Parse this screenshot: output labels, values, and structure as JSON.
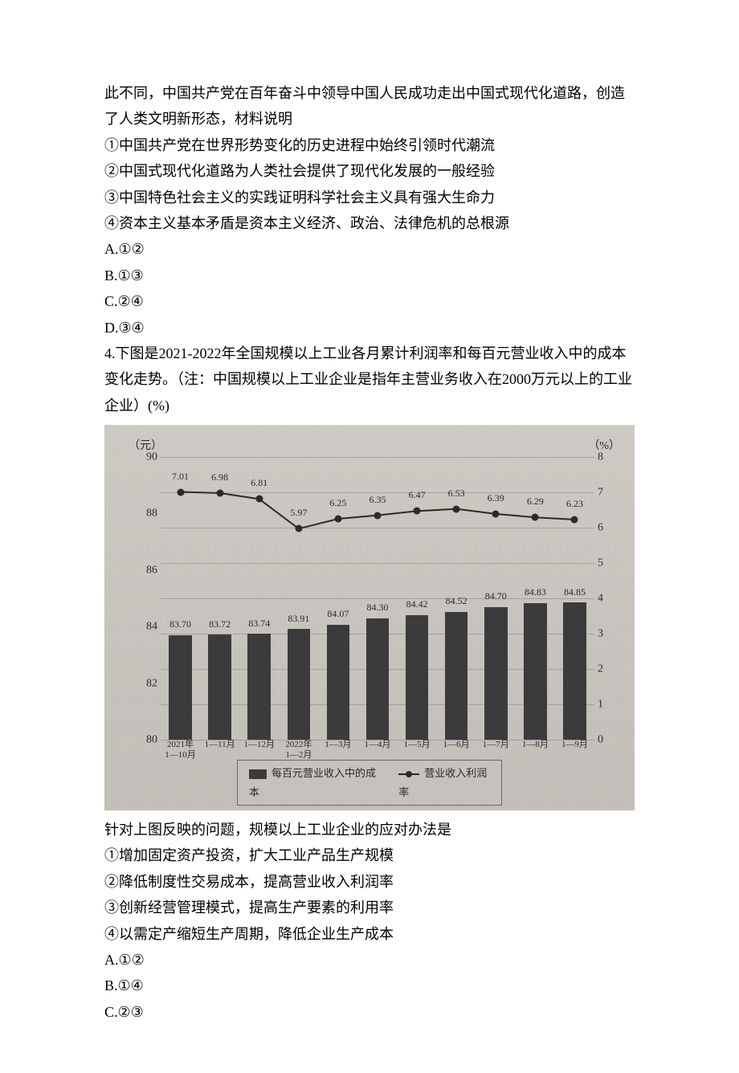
{
  "q3": {
    "intro_cont": "此不同，中国共产党在百年奋斗中领导中国人民成功走出中国式现代化道路，创造了人类文明新形态，材料说明",
    "s1": "①中国共产党在世界形势变化的历史进程中始终引领时代潮流",
    "s2": "②中国式现代化道路为人类社会提供了现代化发展的一般经验",
    "s3": "③中国特色社会主义的实践证明科学社会主义具有强大生命力",
    "s4": "④资本主义基本矛盾是资本主义经济、政治、法律危机的总根源",
    "a": "A.①②",
    "b": "B.①③",
    "c": "C.②④",
    "d": "D.③④"
  },
  "q4": {
    "intro": "4.下图是2021-2022年全国规模以上工业各月累计利润率和每百元营业收入中的成本变化走势。（注：中国规模以上工业企业是指年主营业务收入在2000万元以上的工业企业）(%)",
    "after_chart": "针对上图反映的问题，规模以上工业企业的应对办法是",
    "s1": "①增加固定资产投资，扩大工业产品生产规模",
    "s2": "②降低制度性交易成本，提高营业收入利润率",
    "s3": "③创新经营管理模式，提高生产要素的利用率",
    "s4": "④以需定产缩短生产周期，降低企业生产成本",
    "a": "A.①②",
    "b": "B.①④",
    "c": "C.②③"
  },
  "chart": {
    "type": "bar+line",
    "background_color": "#c8c4be",
    "bar_color": "#3b3b3b",
    "line_color": "#2a2a2a",
    "text_color": "#2a2a2a",
    "grid_color": "rgba(60,60,60,0.25)",
    "left_unit": "（元）",
    "right_unit": "（%）",
    "left_axis": {
      "min": 80,
      "max": 90,
      "ticks": [
        80,
        82,
        84,
        86,
        88,
        90
      ]
    },
    "right_axis": {
      "min": 0,
      "max": 8,
      "ticks": [
        0,
        1,
        2,
        3,
        4,
        5,
        6,
        7,
        8
      ]
    },
    "categories": [
      "2021年\n1—10月",
      "1—11月",
      "1—12月",
      "2022年\n1—2月",
      "1—3月",
      "1—4月",
      "1—5月",
      "1—6月",
      "1—7月",
      "1—8月",
      "1—9月"
    ],
    "bars": {
      "label": "每百元营业收入中的成本",
      "values": [
        83.7,
        83.72,
        83.74,
        83.91,
        84.07,
        84.3,
        84.42,
        84.52,
        84.7,
        84.83,
        84.85
      ],
      "width_frac": 0.58
    },
    "line": {
      "label": "营业收入利润率",
      "values": [
        7.01,
        6.98,
        6.81,
        5.97,
        6.25,
        6.35,
        6.47,
        6.53,
        6.39,
        6.29,
        6.23
      ]
    },
    "fontsize_axis": 14,
    "fontsize_value": 12,
    "fontsize_legend": 13
  }
}
